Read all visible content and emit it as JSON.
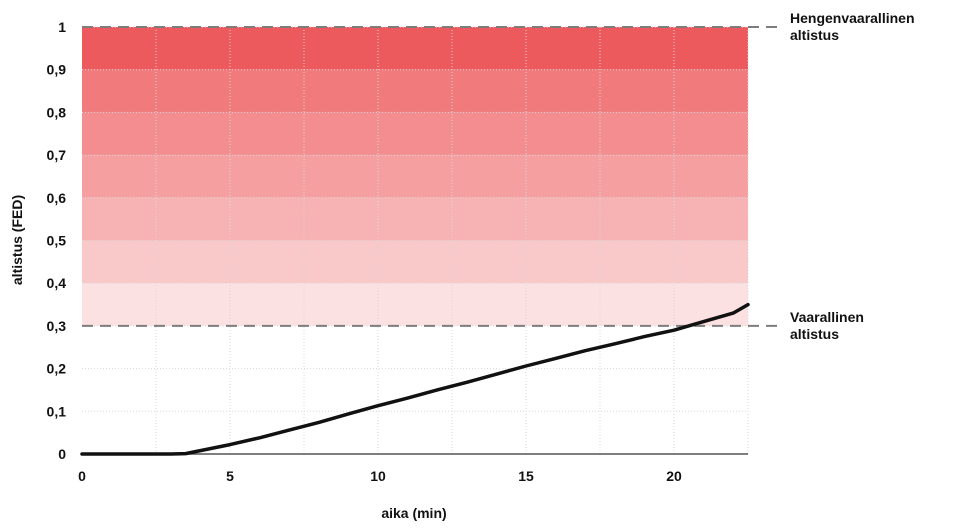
{
  "chart_data": {
    "type": "line",
    "xlabel": "aika (min)",
    "ylabel": "altistus (FED)",
    "xlim": [
      0,
      22.5
    ],
    "ylim": [
      0,
      1
    ],
    "x_ticks": [
      "0",
      "5",
      "10",
      "15",
      "20"
    ],
    "y_ticks": [
      "0",
      "0,1",
      "0,2",
      "0,3",
      "0,4",
      "0,5",
      "0,6",
      "0,7",
      "0,8",
      "0,9",
      "1"
    ],
    "grid": true,
    "series": [
      {
        "color": "#111111",
        "x": [
          0,
          1,
          2,
          3,
          3.5,
          4,
          5,
          6,
          7,
          8,
          9,
          10,
          11,
          12,
          13,
          14,
          15,
          16,
          17,
          18,
          19,
          20,
          21,
          22,
          22.5
        ],
        "y": [
          0,
          0,
          0,
          0,
          0.001,
          0.008,
          0.022,
          0.038,
          0.056,
          0.074,
          0.094,
          0.113,
          0.131,
          0.15,
          0.168,
          0.187,
          0.206,
          0.224,
          0.242,
          0.258,
          0.275,
          0.29,
          0.31,
          0.33,
          0.35
        ]
      }
    ],
    "bands": [
      {
        "from": 0.3,
        "to": 0.4,
        "color": "#fbe1e1"
      },
      {
        "from": 0.4,
        "to": 0.5,
        "color": "#f9c9ca"
      },
      {
        "from": 0.5,
        "to": 0.6,
        "color": "#f7b2b4"
      },
      {
        "from": 0.6,
        "to": 0.7,
        "color": "#f59fa1"
      },
      {
        "from": 0.7,
        "to": 0.8,
        "color": "#f38d8f"
      },
      {
        "from": 0.8,
        "to": 0.9,
        "color": "#f07a7c"
      },
      {
        "from": 0.9,
        "to": 1.0,
        "color": "#ec5a5d"
      }
    ],
    "thresholds": [
      {
        "y": 1.0,
        "lines": [
          "Hengenvaarallinen",
          "altistus"
        ]
      },
      {
        "y": 0.3,
        "lines": [
          "Vaarallinen",
          "altistus"
        ]
      }
    ]
  }
}
